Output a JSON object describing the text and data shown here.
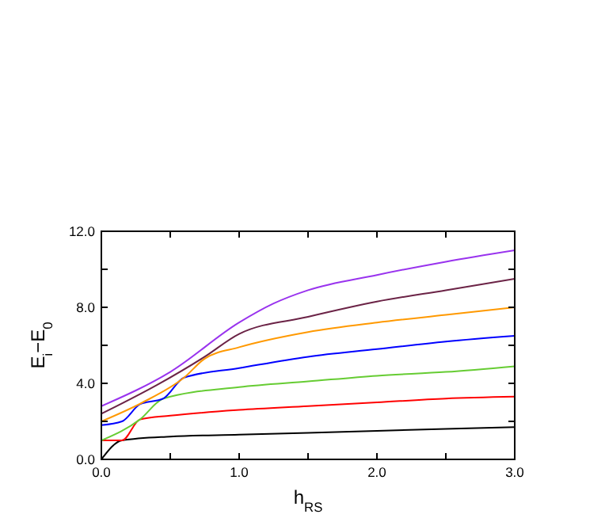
{
  "chart_data": {
    "type": "line",
    "xlabel": "h$_{RS}$",
    "ylabel": "E$_{i}$−E$_{0}$",
    "xlim": [
      0,
      3
    ],
    "ylim": [
      0,
      12
    ],
    "xticks": [
      {
        "value": 0,
        "label": "0.0"
      },
      {
        "value": 0.5,
        "label": null
      },
      {
        "value": 1,
        "label": "1.0"
      },
      {
        "value": 1.5,
        "label": null
      },
      {
        "value": 2,
        "label": "2.0"
      },
      {
        "value": 2.5,
        "label": null
      },
      {
        "value": 3,
        "label": "3.0"
      }
    ],
    "yticks": [
      {
        "value": 0,
        "label": "0.0"
      },
      {
        "value": 2,
        "label": null
      },
      {
        "value": 4,
        "label": "4.0"
      },
      {
        "value": 6,
        "label": null
      },
      {
        "value": 8,
        "label": "8.0"
      },
      {
        "value": 10,
        "label": null
      },
      {
        "value": 12,
        "label": "12.0"
      }
    ],
    "grid": false,
    "marker": "none",
    "line_style": "solid",
    "series": [
      {
        "color": "#000000",
        "x": [
          0,
          0.15,
          0.5,
          1,
          1.5,
          2,
          2.5,
          3
        ],
        "values": [
          0,
          1.0,
          1.2,
          1.3,
          1.4,
          1.5,
          1.6,
          1.7
        ]
      },
      {
        "color": "#ff0000",
        "x": [
          0,
          0.15,
          0.28,
          0.5,
          1,
          1.5,
          2,
          2.5,
          3
        ],
        "values": [
          1.0,
          1.0,
          2.1,
          2.3,
          2.6,
          2.8,
          3.0,
          3.2,
          3.3
        ]
      },
      {
        "color": "#66cc33",
        "x": [
          0,
          0.28,
          0.45,
          1,
          1.5,
          2,
          2.5,
          3
        ],
        "values": [
          1.0,
          2.1,
          3.2,
          3.8,
          4.1,
          4.4,
          4.6,
          4.9
        ]
      },
      {
        "color": "#0000ff",
        "x": [
          0,
          0.15,
          0.28,
          0.45,
          0.6,
          1,
          1.5,
          2,
          2.5,
          3
        ],
        "values": [
          1.8,
          2.0,
          2.9,
          3.2,
          4.3,
          4.8,
          5.4,
          5.8,
          6.2,
          6.5
        ]
      },
      {
        "color": "#ff9900",
        "x": [
          0,
          0.3,
          0.6,
          0.75,
          1,
          1.5,
          2,
          2.5,
          3
        ],
        "values": [
          2.0,
          3.0,
          4.3,
          5.3,
          5.9,
          6.7,
          7.2,
          7.6,
          8.0
        ]
      },
      {
        "color": "#6b2346",
        "x": [
          0,
          0.4,
          0.75,
          1,
          1.5,
          2,
          2.5,
          3
        ],
        "values": [
          2.4,
          3.9,
          5.4,
          6.6,
          7.5,
          8.3,
          8.9,
          9.5
        ]
      },
      {
        "color": "#9933ee",
        "x": [
          0,
          0.5,
          1,
          1.25,
          1.5,
          2,
          2.5,
          3
        ],
        "values": [
          2.8,
          4.6,
          7.2,
          8.2,
          8.9,
          9.7,
          10.4,
          11.0
        ]
      }
    ]
  }
}
